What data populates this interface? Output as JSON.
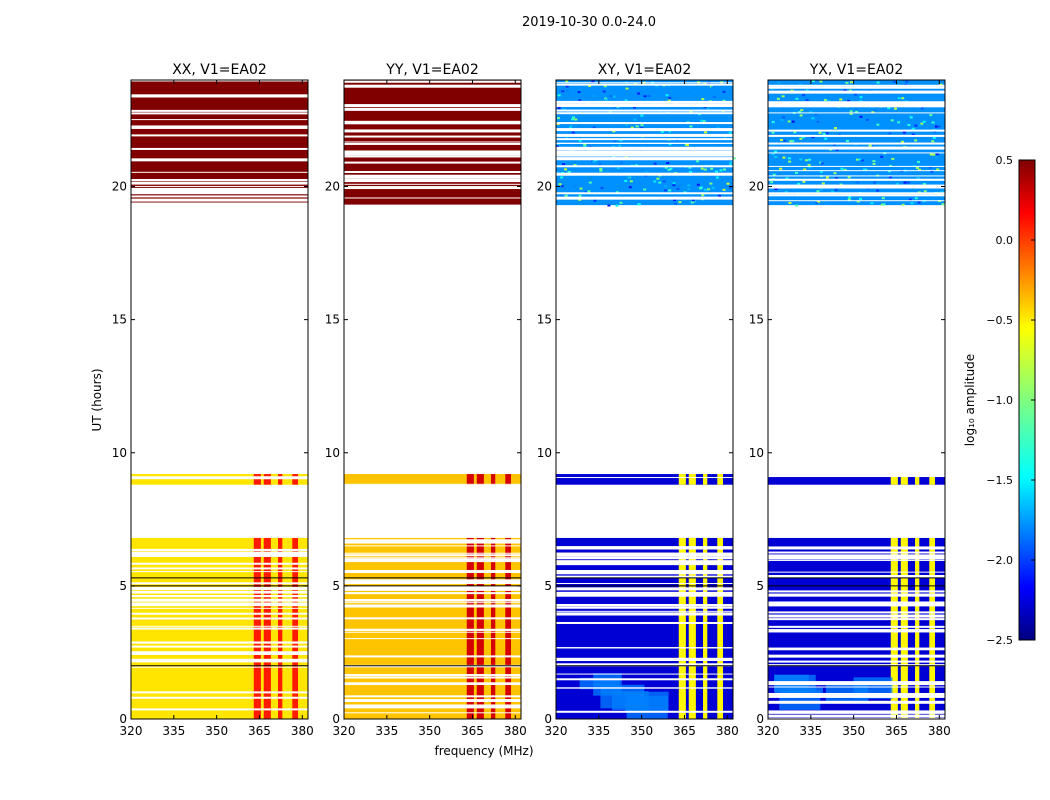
{
  "chart_data": {
    "type": "heatmap",
    "suptitle": "2019-10-30 0.0-24.0",
    "xlabel": "frequency (MHz)",
    "ylabel": "UT (hours)",
    "xlim": [
      320,
      382
    ],
    "ylim": [
      0,
      24
    ],
    "xticks": [
      320,
      335,
      350,
      365,
      380
    ],
    "yticks": [
      0,
      5,
      10,
      15,
      20
    ],
    "colorbar": {
      "label": "log₁₀ amplitude",
      "range": [
        -2.5,
        0.5
      ],
      "ticks": [
        0.5,
        0.0,
        -0.5,
        -1.0,
        -1.5,
        -2.0,
        -2.5
      ],
      "tick_labels": [
        "0.5",
        "0.0",
        "−0.5",
        "−1.0",
        "−1.5",
        "−2.0",
        "−2.5"
      ]
    },
    "panels": [
      {
        "title": "XX, V1=EA02",
        "pol": "XX",
        "base_level": -0.55,
        "rfi_level": 0.05,
        "high_block_level": 0.5
      },
      {
        "title": "YY, V1=EA02",
        "pol": "YY",
        "base_level": -0.45,
        "rfi_level": 0.25,
        "high_block_level": 0.5
      },
      {
        "title": "XY, V1=EA02",
        "pol": "XY",
        "base_level": -2.25,
        "rfi_level": -0.6,
        "high_block_level": -1.7
      },
      {
        "title": "YX, V1=EA02",
        "pol": "YX",
        "base_level": -2.25,
        "rfi_level": -0.6,
        "high_block_level": -1.7
      }
    ],
    "time_blocks_hours": [
      {
        "from": 0.0,
        "to": 6.8,
        "kind": "data"
      },
      {
        "from": 8.8,
        "to": 9.2,
        "kind": "data"
      },
      {
        "from": 19.3,
        "to": 24.0,
        "kind": "high"
      }
    ],
    "rfi_channels_mhz": [
      {
        "from": 363,
        "to": 365.5
      },
      {
        "from": 366.5,
        "to": 369
      },
      {
        "from": 371.5,
        "to": 373
      },
      {
        "from": 376.5,
        "to": 378.5
      }
    ]
  }
}
